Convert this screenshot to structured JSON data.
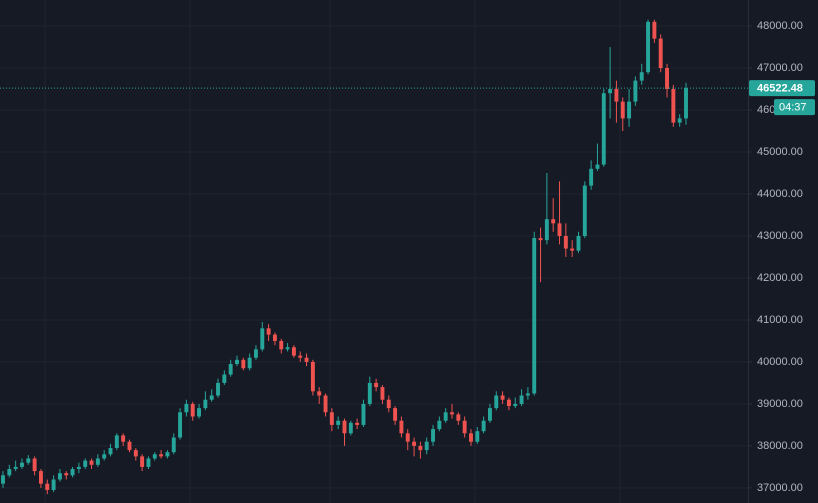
{
  "chart_data": {
    "type": "candlestick",
    "open": [
      37100,
      37300,
      37450,
      37500,
      37600,
      37700,
      37400,
      37100,
      36950,
      37200,
      37350,
      37300,
      37450,
      37500,
      37650,
      37550,
      37700,
      37800,
      37950,
      38250,
      38100,
      37900,
      37750,
      37500,
      37700,
      37800,
      37750,
      37850,
      38200,
      38800,
      39000,
      38700,
      38900,
      39100,
      39200,
      39500,
      39700,
      39950,
      40050,
      39850,
      40100,
      40300,
      40800,
      40650,
      40500,
      40300,
      40350,
      40150,
      40100,
      40000,
      39300,
      39200,
      38800,
      38500,
      38600,
      38300,
      38550,
      38500,
      39000,
      39500,
      39400,
      39100,
      38900,
      38600,
      38300,
      38100,
      38000,
      37900,
      38100,
      38400,
      38600,
      38800,
      38750,
      38600,
      38300,
      38100,
      38350,
      38600,
      38900,
      39200,
      39100,
      38950,
      39000,
      39200,
      39250,
      42950,
      42900,
      43400,
      43300,
      43000,
      42700,
      42650,
      43000,
      44200,
      44600,
      44700,
      46400,
      46500,
      46200,
      45800,
      46200,
      46700,
      46900,
      48100,
      47700,
      47000,
      46500,
      45700,
      45800
    ],
    "high": [
      37400,
      37550,
      37650,
      37700,
      37780,
      37750,
      37450,
      37200,
      37300,
      37450,
      37400,
      37500,
      37600,
      37700,
      37700,
      37800,
      37900,
      38050,
      38300,
      38300,
      38150,
      37950,
      37800,
      37750,
      37850,
      37900,
      37900,
      38300,
      38900,
      39100,
      39050,
      39000,
      39300,
      39350,
      39600,
      39800,
      40050,
      40150,
      40100,
      40200,
      40400,
      40950,
      40900,
      40700,
      40550,
      40450,
      40400,
      40250,
      40200,
      40050,
      39400,
      39250,
      38900,
      38700,
      38650,
      38600,
      38650,
      39100,
      39650,
      39600,
      39450,
      39200,
      38950,
      38700,
      38400,
      38200,
      38100,
      38200,
      38500,
      38700,
      38900,
      39000,
      38800,
      38700,
      38400,
      38450,
      38700,
      39000,
      39300,
      39300,
      39150,
      39150,
      39350,
      39400,
      43100,
      43200,
      44500,
      43900,
      44300,
      43300,
      42900,
      43100,
      44300,
      44800,
      45200,
      46500,
      47500,
      46700,
      46300,
      46500,
      46800,
      47100,
      48150,
      48150,
      47800,
      47100,
      46600,
      45900,
      46650
    ],
    "low": [
      37000,
      37250,
      37400,
      37450,
      37550,
      37300,
      37000,
      36850,
      36900,
      37150,
      37200,
      37250,
      37350,
      37450,
      37450,
      37500,
      37650,
      37750,
      37900,
      38000,
      37850,
      37650,
      37400,
      37450,
      37650,
      37700,
      37700,
      37800,
      38150,
      38700,
      38600,
      38650,
      38850,
      39050,
      39150,
      39450,
      39650,
      39900,
      39800,
      39800,
      40050,
      40250,
      40500,
      40400,
      40200,
      40250,
      40100,
      40000,
      39900,
      39200,
      39000,
      38700,
      38350,
      38400,
      38000,
      38250,
      38400,
      38450,
      38950,
      39300,
      39000,
      38800,
      38500,
      38200,
      37900,
      37750,
      37700,
      37800,
      38000,
      38350,
      38550,
      38650,
      38500,
      38200,
      38000,
      38050,
      38300,
      38550,
      38850,
      39000,
      38850,
      38900,
      38950,
      39100,
      39200,
      41900,
      42800,
      43100,
      42800,
      42500,
      42500,
      42600,
      42950,
      44100,
      44550,
      44650,
      45800,
      45700,
      45500,
      45600,
      46100,
      46600,
      46850,
      47600,
      46900,
      46300,
      45600,
      45600,
      45650
    ],
    "close": [
      37300,
      37450,
      37500,
      37600,
      37700,
      37400,
      37100,
      36950,
      37200,
      37350,
      37300,
      37450,
      37500,
      37650,
      37550,
      37700,
      37800,
      37950,
      38250,
      38100,
      37900,
      37750,
      37500,
      37700,
      37800,
      37750,
      37850,
      38200,
      38800,
      39000,
      38700,
      38900,
      39100,
      39200,
      39500,
      39700,
      39950,
      40050,
      39850,
      40100,
      40300,
      40800,
      40650,
      40500,
      40300,
      40350,
      40150,
      40100,
      40000,
      39300,
      39200,
      38800,
      38500,
      38600,
      38300,
      38550,
      38500,
      39000,
      39500,
      39400,
      39100,
      38900,
      38600,
      38300,
      38100,
      38000,
      37900,
      38100,
      38400,
      38600,
      38800,
      38750,
      38600,
      38300,
      38100,
      38350,
      38600,
      38900,
      39200,
      39100,
      38950,
      39000,
      39200,
      39250,
      42950,
      42900,
      43400,
      43300,
      43000,
      42700,
      42650,
      43000,
      44200,
      44600,
      44700,
      46400,
      46500,
      46200,
      45800,
      46200,
      46700,
      46900,
      48100,
      47700,
      47000,
      46500,
      45700,
      45800,
      46522.48
    ],
    "up_color": "#26a69a",
    "down_color": "#ef5350",
    "ylim": [
      36640,
      48620
    ],
    "yticks": [
      {
        "value": 37000,
        "label": "37000.00"
      },
      {
        "value": 38000,
        "label": "38000.00"
      },
      {
        "value": 39000,
        "label": "39000.00"
      },
      {
        "value": 40000,
        "label": "40000.00"
      },
      {
        "value": 41000,
        "label": "41000.00"
      },
      {
        "value": 42000,
        "label": "42000.00"
      },
      {
        "value": 43000,
        "label": "43000.00"
      },
      {
        "value": 44000,
        "label": "44000.00"
      },
      {
        "value": 45000,
        "label": "45000.00"
      },
      {
        "value": 46000,
        "label": "46000.00"
      },
      {
        "value": 47000,
        "label": "47000.00"
      },
      {
        "value": 48000,
        "label": "48000.00"
      }
    ],
    "grid": true,
    "countdown": "04:37"
  }
}
